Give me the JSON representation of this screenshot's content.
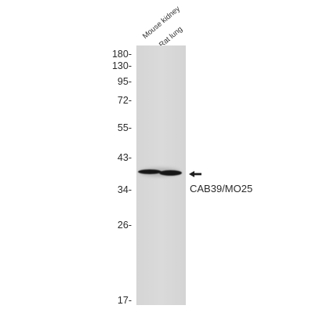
{
  "lanes": [
    {
      "label": "Mouse kidney"
    },
    {
      "label": "Rat lung"
    }
  ],
  "markers": [
    {
      "label": "180-",
      "kda": 180
    },
    {
      "label": "130-",
      "kda": 130
    },
    {
      "label": "95-",
      "kda": 95
    },
    {
      "label": "72-",
      "kda": 72
    },
    {
      "label": "55-",
      "kda": 55
    },
    {
      "label": "43-",
      "kda": 43
    },
    {
      "label": "34-",
      "kda": 34
    },
    {
      "label": "26-",
      "kda": 26
    },
    {
      "label": "17-",
      "kda": 17
    }
  ],
  "target": {
    "label": "CAB39/MO25"
  },
  "colors": {
    "membrane": "#d7d7d7",
    "band": "#161616",
    "text": "#2b2b2b"
  }
}
